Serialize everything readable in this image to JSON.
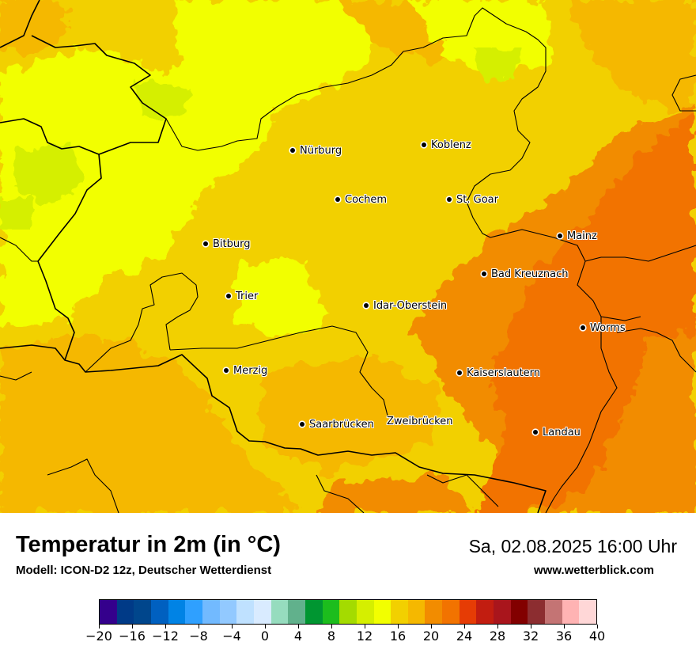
{
  "map": {
    "cities": [
      {
        "id": "nuerburg",
        "name": "Nürburg",
        "dot": true
      },
      {
        "id": "koblenz",
        "name": "Koblenz",
        "dot": true
      },
      {
        "id": "cochem",
        "name": "Cochem",
        "dot": true
      },
      {
        "id": "st-goar",
        "name": "St. Goar",
        "dot": true
      },
      {
        "id": "mainz",
        "name": "Mainz",
        "dot": true
      },
      {
        "id": "bitburg",
        "name": "Bitburg",
        "dot": true
      },
      {
        "id": "bad-kreuznach",
        "name": "Bad Kreuznach",
        "dot": true
      },
      {
        "id": "trier",
        "name": "Trier",
        "dot": true
      },
      {
        "id": "idar-oberstein",
        "name": "Idar-Oberstein",
        "dot": true
      },
      {
        "id": "worms",
        "name": "Worms",
        "dot": true
      },
      {
        "id": "merzig",
        "name": "Merzig",
        "dot": true
      },
      {
        "id": "kaiserslautern",
        "name": "Kaiserslautern",
        "dot": true
      },
      {
        "id": "saarbruecken",
        "name": "Saarbrücken",
        "dot": true
      },
      {
        "id": "zweibruecken",
        "name": "Zweibrücken",
        "dot": false
      },
      {
        "id": "landau",
        "name": "Landau",
        "dot": true
      }
    ]
  },
  "footer": {
    "title": "Temperatur in 2m (in °C)",
    "subtitle": "Modell: ICON-D2 12z, Deutscher Wetterdienst",
    "datetime": "Sa, 02.08.2025 16:00 Uhr",
    "website": "www.wetterblick.com"
  },
  "legend": {
    "unit": "°C",
    "min": -20,
    "max": 40,
    "step": 2,
    "tick_labels": [
      "−20",
      "−16",
      "−12",
      "−8",
      "−4",
      "0",
      "4",
      "8",
      "12",
      "16",
      "20",
      "24",
      "28",
      "32",
      "36",
      "40"
    ],
    "colors": [
      "#34008c",
      "#003a87",
      "#00468c",
      "#0060c0",
      "#0083e5",
      "#2fa0ff",
      "#72baff",
      "#92c9ff",
      "#bfe1ff",
      "#d9ebff",
      "#96dcbe",
      "#61b18c",
      "#009631",
      "#1cbd1d",
      "#a4db00",
      "#d5ef00",
      "#f2ff00",
      "#f2d000",
      "#f5b800",
      "#f28c00",
      "#f27300",
      "#e63c05",
      "#c21d10",
      "#a9151c",
      "#820000",
      "#8c2d30",
      "#c47474",
      "#ffb3b3",
      "#ffd7d7"
    ]
  }
}
